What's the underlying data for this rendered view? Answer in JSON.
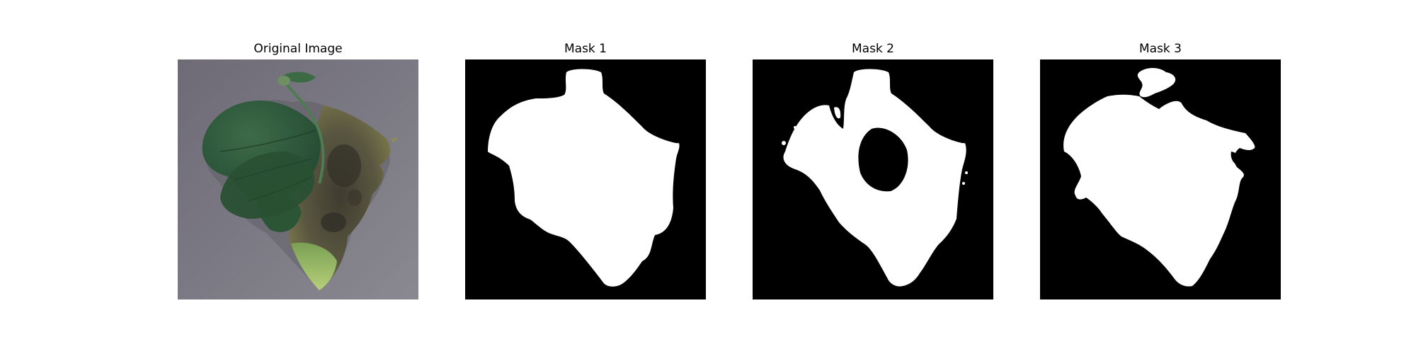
{
  "figure": {
    "panels": [
      {
        "title": "Original Image"
      },
      {
        "title": "Mask 1"
      },
      {
        "title": "Mask 2"
      },
      {
        "title": "Mask 3"
      }
    ]
  },
  "colors": {
    "background": "#ffffff",
    "mask_background": "#000000",
    "mask_foreground": "#ffffff",
    "photo_surface": "#77757e",
    "leaf_green": "#2f5a3c",
    "diseased_tissue": "#4d4a36",
    "leaf_tip_yellow_green": "#9fbf6a"
  }
}
